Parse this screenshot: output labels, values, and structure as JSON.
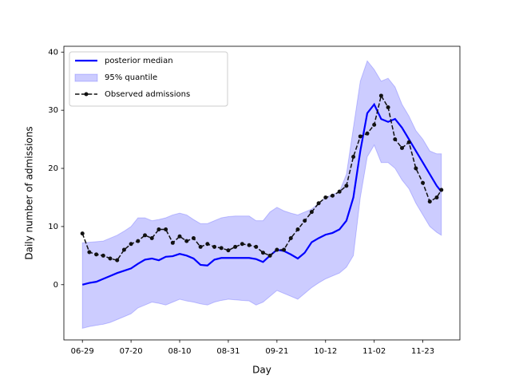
{
  "chart_data": {
    "type": "line",
    "xlabel": "Day",
    "ylabel": "Daily number of admissions",
    "x": [
      "06-29",
      "07-02",
      "07-05",
      "07-08",
      "07-11",
      "07-14",
      "07-17",
      "07-20",
      "07-23",
      "07-26",
      "07-29",
      "08-01",
      "08-04",
      "08-07",
      "08-10",
      "08-13",
      "08-16",
      "08-19",
      "08-22",
      "08-25",
      "08-28",
      "08-31",
      "09-03",
      "09-06",
      "09-09",
      "09-12",
      "09-15",
      "09-18",
      "09-21",
      "09-24",
      "09-27",
      "09-30",
      "10-03",
      "10-06",
      "10-09",
      "10-12",
      "10-15",
      "10-18",
      "10-21",
      "10-24",
      "10-27",
      "10-30",
      "11-02",
      "11-05",
      "11-08",
      "11-11",
      "11-14",
      "11-17",
      "11-20",
      "11-23",
      "11-26",
      "11-29",
      "12-01"
    ],
    "series": [
      {
        "name": "posterior median",
        "color": "#0000ff",
        "kind": "line",
        "values": [
          0,
          0.3,
          0.5,
          1,
          1.5,
          2,
          2.4,
          2.8,
          3.6,
          4.3,
          4.5,
          4.2,
          4.8,
          4.9,
          5.3,
          5.0,
          4.5,
          3.4,
          3.3,
          4.3,
          4.6,
          4.6,
          4.6,
          4.6,
          4.6,
          4.4,
          3.9,
          5.0,
          6.0,
          5.8,
          5.2,
          4.5,
          5.5,
          7.3,
          8.0,
          8.6,
          8.9,
          9.5,
          11,
          15,
          23,
          29.5,
          31,
          28.5,
          28,
          28.5,
          27,
          25,
          23,
          21,
          19,
          17,
          16
        ]
      },
      {
        "name": "95% quantile",
        "color": "#0000ff",
        "kind": "band",
        "lower": [
          -7.5,
          -7.2,
          -7,
          -6.8,
          -6.5,
          -6,
          -5.5,
          -5,
          -4,
          -3.5,
          -3,
          -3.2,
          -3.5,
          -3,
          -2.5,
          -2.8,
          -3,
          -3.3,
          -3.5,
          -3,
          -2.7,
          -2.5,
          -2.6,
          -2.7,
          -2.8,
          -3.5,
          -3,
          -2,
          -1,
          -1.5,
          -2,
          -2.5,
          -1.5,
          -0.5,
          0.3,
          1,
          1.5,
          2,
          3,
          5,
          15,
          22,
          24,
          21,
          21,
          20,
          18,
          16.5,
          14,
          12,
          10,
          9,
          8.5
        ],
        "upper": [
          7.2,
          7.3,
          7.4,
          7.5,
          8,
          8.5,
          9.2,
          10,
          11.5,
          11.5,
          11,
          11.2,
          11.5,
          12,
          12.3,
          12,
          11.2,
          10.5,
          10.5,
          11,
          11.5,
          11.7,
          11.8,
          11.8,
          11.8,
          11,
          11,
          12.5,
          13.3,
          12.7,
          12.3,
          12,
          12.5,
          13,
          14,
          15,
          15.5,
          16,
          19,
          27,
          35,
          38.5,
          37,
          35,
          35.5,
          34,
          31,
          29,
          26.5,
          25,
          23,
          22.5,
          22.5
        ]
      },
      {
        "name": "Observed admissions",
        "color": "#111111",
        "kind": "line",
        "linestyle": "dashed",
        "marker": "o",
        "values": [
          8.8,
          5.6,
          5.2,
          5,
          4.5,
          4.2,
          6,
          7,
          7.5,
          8.5,
          8,
          9.5,
          9.5,
          7.2,
          8.3,
          7.5,
          8,
          6.5,
          7,
          6.5,
          6.3,
          5.9,
          6.5,
          7,
          6.8,
          6.5,
          5.5,
          5,
          6,
          6,
          8,
          9.5,
          11,
          12.5,
          14,
          15,
          15.3,
          16,
          17,
          22,
          25.5,
          26,
          27.5,
          32.5,
          30.5,
          25,
          23.5,
          24.5,
          20,
          17.5,
          14.3,
          15,
          16.3
        ]
      }
    ],
    "xlim": [
      "06-21",
      "12-09"
    ],
    "xticks": [
      "06-29",
      "07-20",
      "08-10",
      "08-31",
      "09-21",
      "10-12",
      "11-02",
      "11-23"
    ],
    "ylim": [
      -9.5,
      41
    ],
    "yticks": [
      0,
      10,
      20,
      30,
      40
    ],
    "grid": false,
    "legend": "upper left"
  }
}
